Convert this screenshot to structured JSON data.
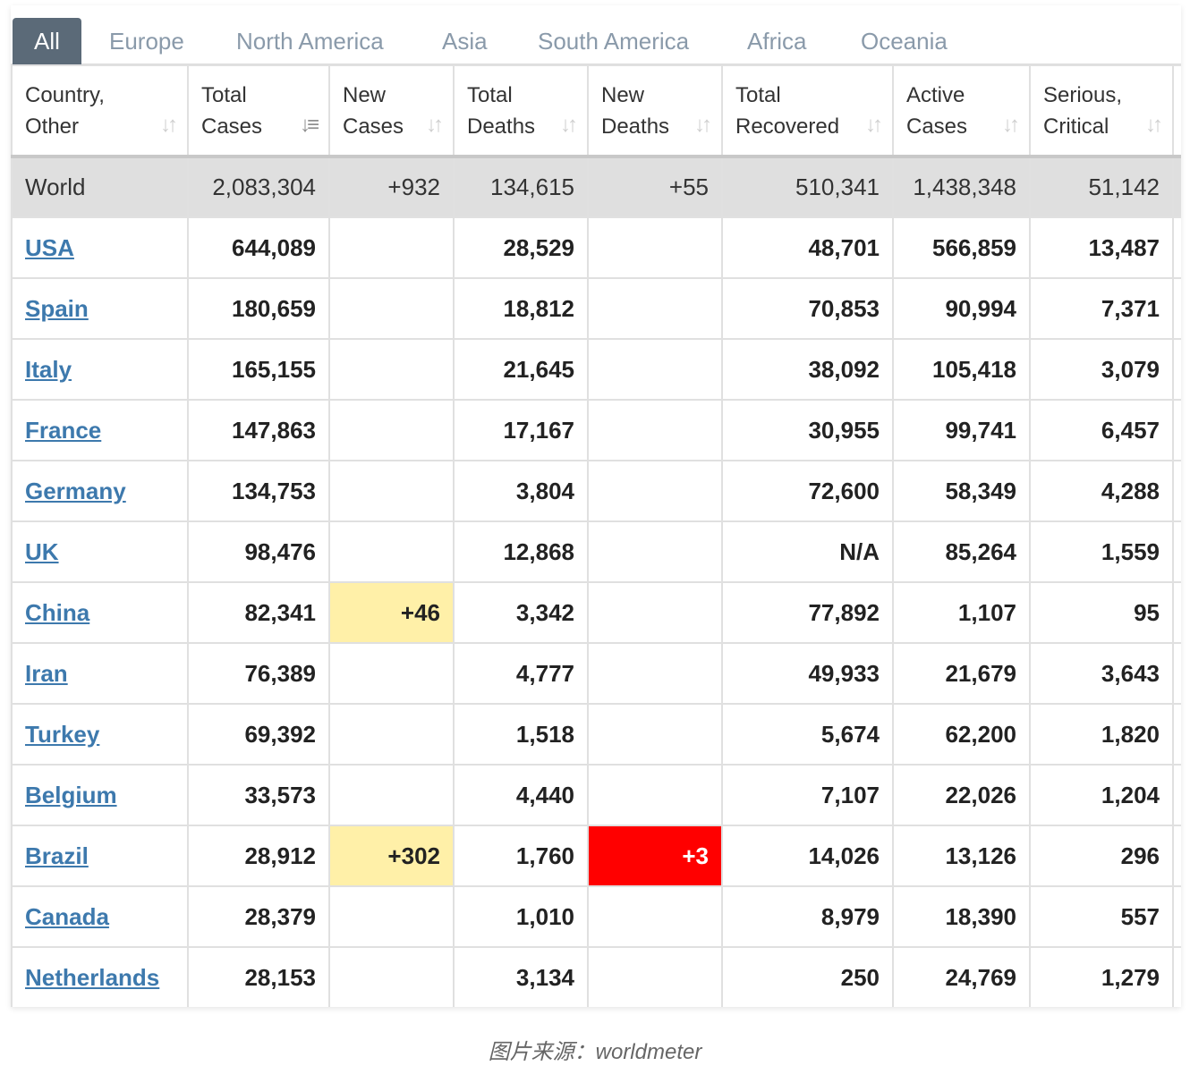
{
  "tabs": [
    "All",
    "Europe",
    "North America",
    "Asia",
    "South America",
    "Africa",
    "Oceania"
  ],
  "active_tab": "All",
  "table": {
    "headers": [
      {
        "line1": "Country,",
        "line2": "Other"
      },
      {
        "line1": "Total",
        "line2": "Cases"
      },
      {
        "line1": "New",
        "line2": "Cases"
      },
      {
        "line1": "Total",
        "line2": "Deaths"
      },
      {
        "line1": "New",
        "line2": "Deaths"
      },
      {
        "line1": "Total",
        "line2": "Recovered"
      },
      {
        "line1": "Active",
        "line2": "Cases"
      },
      {
        "line1": "Serious,",
        "line2": "Critical"
      }
    ],
    "sort_icon": "sort-arrows-icon",
    "sorted_column": "Total Cases",
    "world": [
      "World",
      "2,083,304",
      "+932",
      "134,615",
      "+55",
      "510,341",
      "1,438,348",
      "51,142"
    ],
    "rows": [
      [
        "USA",
        "644,089",
        "",
        "28,529",
        "",
        "48,701",
        "566,859",
        "13,487"
      ],
      [
        "Spain",
        "180,659",
        "",
        "18,812",
        "",
        "70,853",
        "90,994",
        "7,371"
      ],
      [
        "Italy",
        "165,155",
        "",
        "21,645",
        "",
        "38,092",
        "105,418",
        "3,079"
      ],
      [
        "France",
        "147,863",
        "",
        "17,167",
        "",
        "30,955",
        "99,741",
        "6,457"
      ],
      [
        "Germany",
        "134,753",
        "",
        "3,804",
        "",
        "72,600",
        "58,349",
        "4,288"
      ],
      [
        "UK",
        "98,476",
        "",
        "12,868",
        "",
        "N/A",
        "85,264",
        "1,559"
      ],
      [
        "China",
        "82,341",
        "+46",
        "3,342",
        "",
        "77,892",
        "1,107",
        "95"
      ],
      [
        "Iran",
        "76,389",
        "",
        "4,777",
        "",
        "49,933",
        "21,679",
        "3,643"
      ],
      [
        "Turkey",
        "69,392",
        "",
        "1,518",
        "",
        "5,674",
        "62,200",
        "1,820"
      ],
      [
        "Belgium",
        "33,573",
        "",
        "4,440",
        "",
        "7,107",
        "22,026",
        "1,204"
      ],
      [
        "Brazil",
        "28,912",
        "+302",
        "1,760",
        "+3",
        "14,026",
        "13,126",
        "296"
      ],
      [
        "Canada",
        "28,379",
        "",
        "1,010",
        "",
        "8,979",
        "18,390",
        "557"
      ],
      [
        "Netherlands",
        "28,153",
        "",
        "3,134",
        "",
        "250",
        "24,769",
        "1,279"
      ]
    ]
  },
  "colors": {
    "new_cases_highlight": "#fff0a8",
    "new_deaths_highlight": "#ff0000",
    "link": "#3d79ad",
    "active_tab": "#5b6a78"
  },
  "caption": "图片来源：worldmeter"
}
